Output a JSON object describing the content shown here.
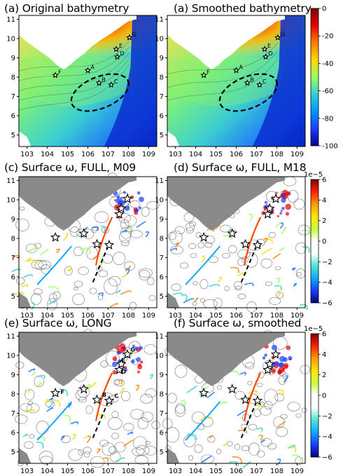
{
  "panels": [
    {
      "title": "(a) Original bathymetry",
      "kind": "bathy"
    },
    {
      "title": "(a) Smoothed bathymetry",
      "kind": "bathy"
    },
    {
      "title": "(c) Surface ω, FULL, M09",
      "kind": "omega"
    },
    {
      "title": "(d) Surface ω, FULL, M18",
      "kind": "omega"
    },
    {
      "title": "(e) Surface ω, LONG",
      "kind": "omega"
    },
    {
      "title": "(f) Surface ω, smoothed",
      "kind": "omega"
    }
  ],
  "axes": {
    "x_ticks": [
      "103",
      "104",
      "105",
      "106",
      "107",
      "108",
      "109"
    ],
    "y_ticks": [
      "11",
      "10",
      "9",
      "8",
      "7",
      "6",
      "5"
    ]
  },
  "colorbar_bathy": {
    "ticks": [
      "0",
      "-20",
      "-40",
      "-60",
      "-80",
      "-100"
    ],
    "colors": [
      "#7f0000",
      "#e60000",
      "#ff7f00",
      "#ffd700",
      "#9bff5f",
      "#2fd0d0",
      "#0096ff",
      "#1e3cff",
      "#00008f"
    ]
  },
  "colorbar_omega": {
    "exponent": "1e−5",
    "ticks": [
      "6",
      "4",
      "2",
      "0",
      "−2",
      "−4",
      "−6"
    ],
    "colors": [
      "#7f0000",
      "#ff2000",
      "#ff9a00",
      "#ffe600",
      "#c8ff3c",
      "#ffffff",
      "#ffffff",
      "#4fe4d6",
      "#0fa8ff",
      "#1640ff",
      "#00007a"
    ]
  },
  "stations": {
    "labeled": [
      {
        "name": "G"
      },
      {
        "name": "E"
      },
      {
        "name": "D"
      },
      {
        "name": "A"
      },
      {
        "name": "F"
      },
      {
        "name": "B"
      },
      {
        "name": "C"
      }
    ]
  }
}
